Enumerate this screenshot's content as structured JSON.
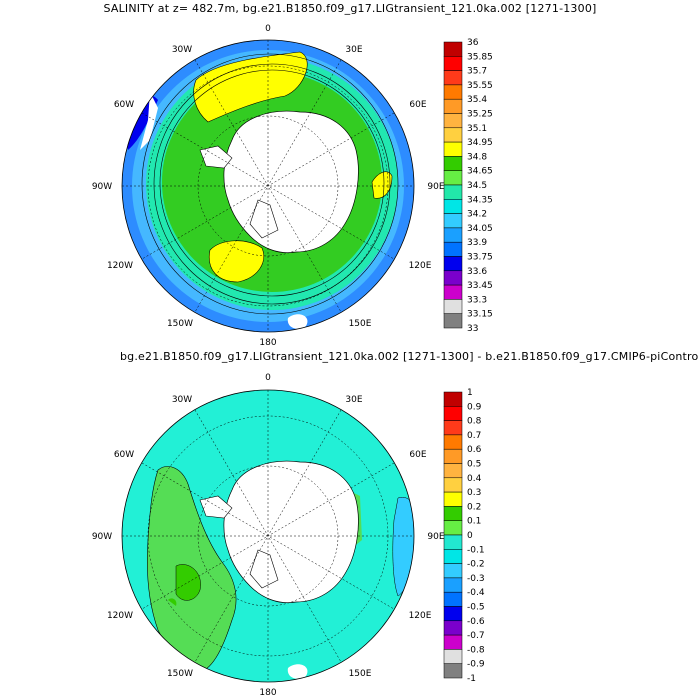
{
  "titles": {
    "top": "SALINITY at z= 482.7m, bg.e21.B1850.f09_g17.LIGtransient_121.0ka.002 [1271-1300]",
    "bottom": "bg.e21.B1850.f09_g17.LIGtransient_121.0ka.002 [1271-1300] - b.e21.B1850.f09_g17.CMIP6-piContro"
  },
  "map_labels": {
    "lon_0": "0",
    "lon_30E": "30E",
    "lon_60E": "60E",
    "lon_90E": "90E",
    "lon_120E": "120E",
    "lon_150E": "150E",
    "lon_180": "180",
    "lon_150W": "150W",
    "lon_120W": "120W",
    "lon_90W": "90W",
    "lon_60W": "60W",
    "lon_30W": "30W"
  },
  "colorbar_top": {
    "labels": [
      "36",
      "35.85",
      "35.7",
      "35.55",
      "35.4",
      "35.25",
      "35.1",
      "34.95",
      "34.8",
      "34.65",
      "34.5",
      "34.35",
      "34.2",
      "34.05",
      "33.9",
      "33.75",
      "33.6",
      "33.45",
      "33.3",
      "33.15",
      "33"
    ],
    "colors": [
      "#c00000",
      "#ff0000",
      "#ff3a1a",
      "#ff7a00",
      "#ff9a26",
      "#ffb340",
      "#ffd040",
      "#ffff00",
      "#33cc00",
      "#66ee44",
      "#22e8aa",
      "#00e6e6",
      "#33ccff",
      "#1aa0ff",
      "#0073ff",
      "#0000ee",
      "#7a00cc",
      "#cc00cc",
      "#e0e0e0",
      "#808080"
    ]
  },
  "colorbar_bottom": {
    "labels": [
      "1",
      "0.9",
      "0.8",
      "0.7",
      "0.6",
      "0.5",
      "0.4",
      "0.3",
      "0.2",
      "0.1",
      "0",
      "-0.1",
      "-0.2",
      "-0.3",
      "-0.4",
      "-0.5",
      "-0.6",
      "-0.7",
      "-0.8",
      "-0.9",
      "-1"
    ],
    "colors": [
      "#c00000",
      "#ff0000",
      "#ff3a1a",
      "#ff7a00",
      "#ff9a26",
      "#ffb340",
      "#ffd040",
      "#ffff00",
      "#33cc00",
      "#66ee44",
      "#22e8d0",
      "#00e6e6",
      "#33ccff",
      "#1aa0ff",
      "#0073ff",
      "#0000ee",
      "#7a00cc",
      "#cc00cc",
      "#e0e0e0",
      "#808080"
    ]
  }
}
